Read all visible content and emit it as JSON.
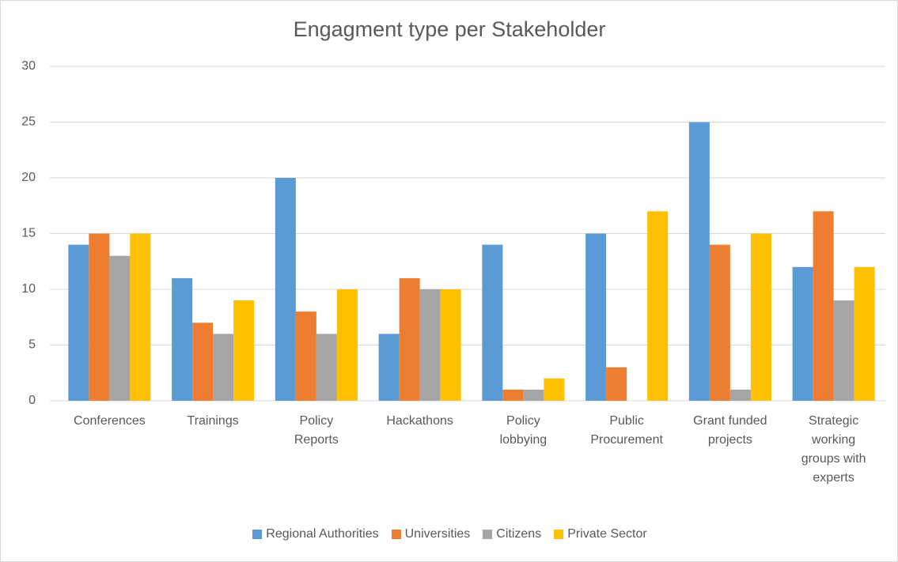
{
  "chart_data": {
    "type": "bar",
    "title": "Engagment type per Stakeholder",
    "categories": [
      "Conferences",
      "Trainings",
      "Policy Reports",
      "Hackathons",
      "Policy lobbying",
      "Public Procurement",
      "Grant funded projects",
      "Strategic working groups with experts"
    ],
    "series": [
      {
        "name": "Regional Authorities",
        "color": "#5b9bd5",
        "values": [
          14,
          11,
          20,
          6,
          14,
          15,
          25,
          12
        ]
      },
      {
        "name": "Universities",
        "color": "#ed7d31",
        "values": [
          15,
          7,
          8,
          11,
          1,
          3,
          14,
          17
        ]
      },
      {
        "name": "Citizens",
        "color": "#a5a5a5",
        "values": [
          13,
          6,
          6,
          10,
          1,
          0,
          1,
          9
        ]
      },
      {
        "name": "Private Sector",
        "color": "#ffc000",
        "values": [
          15,
          9,
          10,
          10,
          2,
          17,
          15,
          12
        ]
      }
    ],
    "ylim": [
      0,
      30
    ],
    "yticks": [
      0,
      5,
      10,
      15,
      20,
      25,
      30
    ],
    "grid": true,
    "legend": "bottom"
  }
}
